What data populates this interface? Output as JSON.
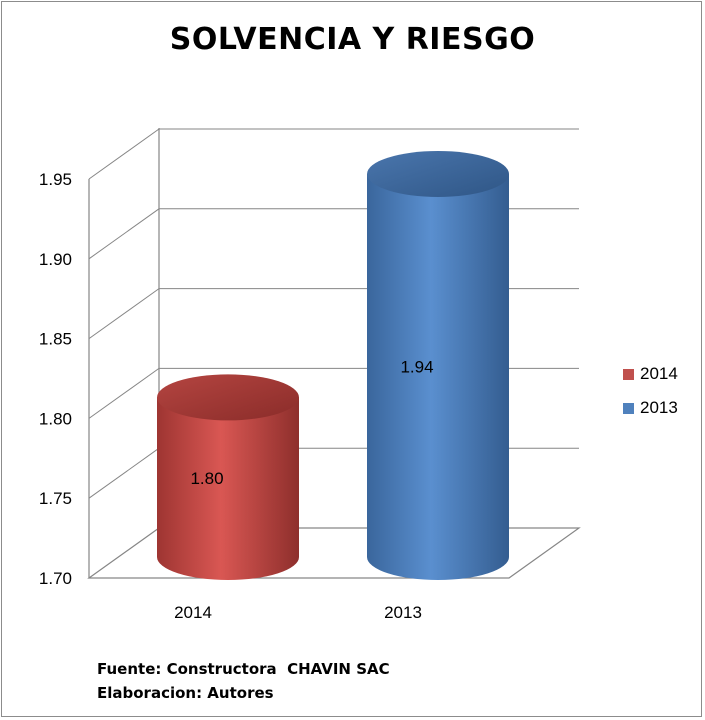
{
  "chart_data": {
    "type": "bar",
    "title": "SOLVENCIA Y RIESGO",
    "categories": [
      "2014",
      "2013"
    ],
    "series": [
      {
        "name": "2014",
        "values": [
          1.8,
          null
        ],
        "color": "#c0504d",
        "label": "1.80"
      },
      {
        "name": "2013",
        "values": [
          null,
          1.94
        ],
        "color": "#4f81bd",
        "label": "1.94"
      }
    ],
    "ylim": [
      1.7,
      1.95
    ],
    "yticks": [
      "1.70",
      "1.75",
      "1.80",
      "1.85",
      "1.90",
      "1.95"
    ],
    "grid": true,
    "legend": "right",
    "shape": "cylinder-3d"
  },
  "footer": {
    "source": "Fuente: Constructora  CHAVIN SAC",
    "author": "Elaboracion: Autores"
  }
}
